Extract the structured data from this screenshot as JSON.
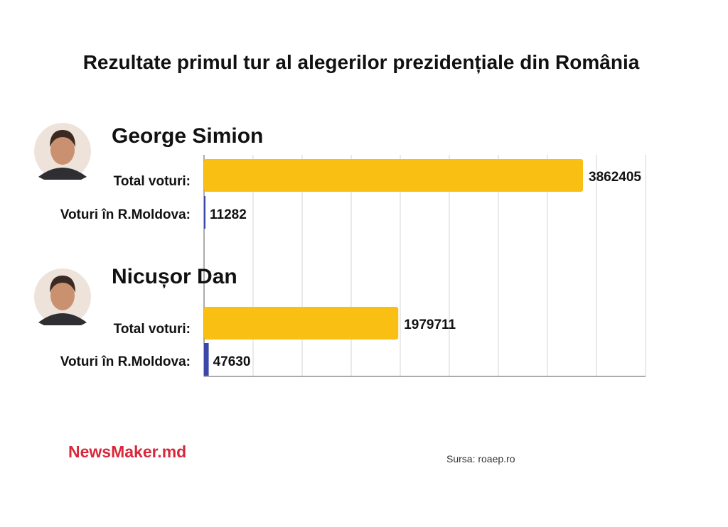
{
  "title": "Rezultate primul tur al alegerilor prezidențiale din România",
  "brand": "NewsMaker.md",
  "source": "Sursa: roaep.ro",
  "row_labels": {
    "total": "Total voturi:",
    "moldova": "Voturi în R.Moldova:"
  },
  "colors": {
    "total_bar": "#F9BF13",
    "moldova_bar": "#3A47A8",
    "brand": "#D9283A",
    "grid": "#D6D6D6",
    "axis": "#5A5A5A"
  },
  "chart_data": {
    "type": "bar",
    "orientation": "horizontal",
    "title": "Rezultate primul tur al alegerilor prezidențiale din România",
    "grid": true,
    "candidates": [
      {
        "name": "George Simion",
        "total_votes": 3862405,
        "moldova_votes": 11282,
        "total_votes_label": "3862405",
        "moldova_votes_label": "11282"
      },
      {
        "name": "Nicușor Dan",
        "total_votes": 1979711,
        "moldova_votes": 47630,
        "total_votes_label": "1979711",
        "moldova_votes_label": "47630"
      }
    ],
    "xlim": [
      0,
      4500000
    ]
  }
}
